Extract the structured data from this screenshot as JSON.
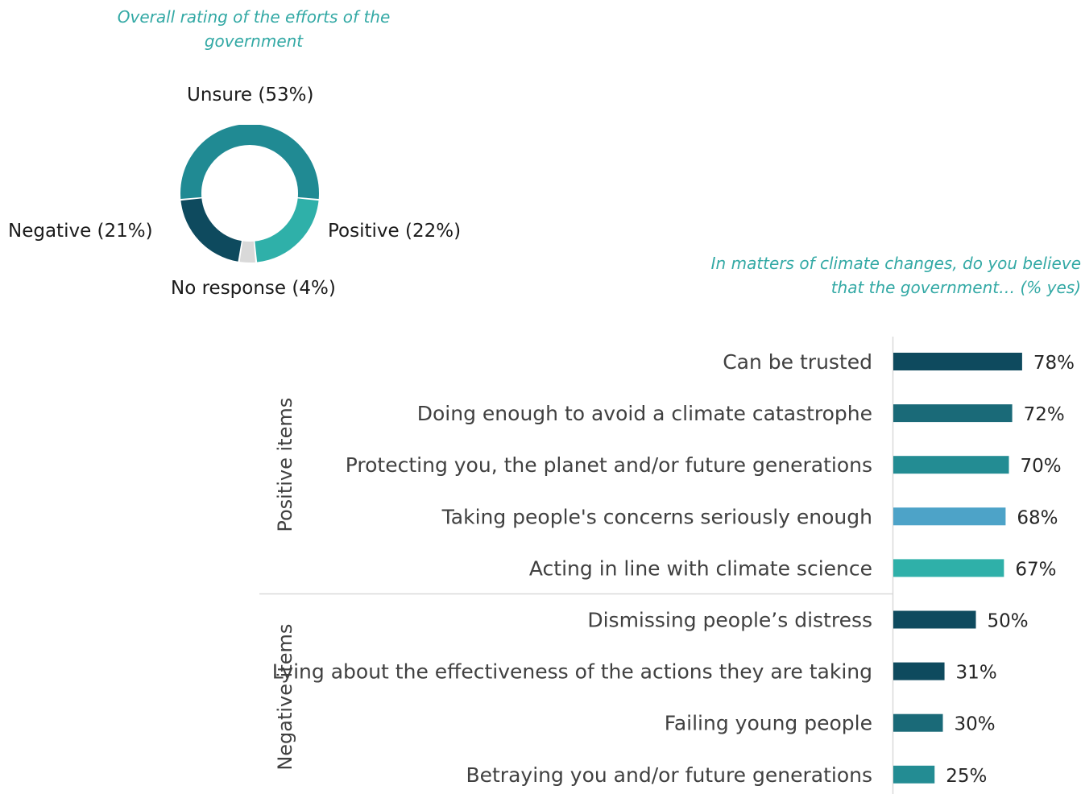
{
  "chart_data": [
    {
      "type": "pie",
      "variant": "donut",
      "title": "Overall rating of the efforts of the government",
      "slices": [
        {
          "name": "Unsure",
          "value": 53,
          "label": "Unsure (53%)",
          "color": "#208a93"
        },
        {
          "name": "Positive",
          "value": 22,
          "label": "Positive (22%)",
          "color": "#2fb0a9"
        },
        {
          "name": "No response",
          "value": 4,
          "label": "No response (4%)",
          "color": "#d9d9d9"
        },
        {
          "name": "Negative",
          "value": 21,
          "label": "Negative (21%)",
          "color": "#0e4a5e"
        }
      ]
    },
    {
      "type": "bar",
      "orientation": "horizontal",
      "title": "In matters of climate changes, do you believe that the government… (% yes)",
      "groups": [
        {
          "label": "Positive items",
          "items": [
            {
              "category": "Can be trusted",
              "value": 78,
              "label": "78%",
              "color": "#0e4a5e"
            },
            {
              "category": "Doing enough to avoid a climate catastrophe",
              "value": 72,
              "label": "72%",
              "color": "#1a6a78"
            },
            {
              "category": "Protecting you, the planet and/or future generations",
              "value": 70,
              "label": "70%",
              "color": "#238c93"
            },
            {
              "category": "Taking people's concerns seriously enough",
              "value": 68,
              "label": "68%",
              "color": "#4da3c8"
            },
            {
              "category": "Acting in line with climate science",
              "value": 67,
              "label": "67%",
              "color": "#2fb0a9"
            }
          ]
        },
        {
          "label": "Negative items",
          "items": [
            {
              "category": "Dismissing people’s distress",
              "value": 50,
              "label": "50%",
              "color": "#0e4a5e"
            },
            {
              "category": "Lying about the effectiveness of the actions they are taking",
              "value": 31,
              "label": "31%",
              "color": "#0e4a5e"
            },
            {
              "category": "Failing young people",
              "value": 30,
              "label": "30%",
              "color": "#1a6a78"
            },
            {
              "category": "Betraying you and/or future generations",
              "value": 25,
              "label": "25%",
              "color": "#238c93"
            }
          ]
        }
      ],
      "xlim": [
        0,
        100
      ],
      "grid": false
    }
  ]
}
